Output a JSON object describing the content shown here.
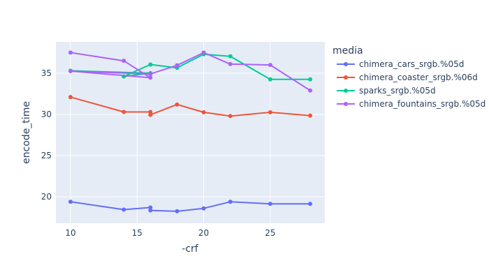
{
  "chart_data": {
    "type": "line",
    "xlabel": "-crf",
    "ylabel": "encode_time",
    "xlim": [
      8.9,
      29.1
    ],
    "ylim": [
      16.8,
      38.8
    ],
    "xticks": [
      10,
      15,
      20,
      25
    ],
    "yticks": [
      20,
      25,
      30,
      35
    ],
    "grid": true,
    "legend": {
      "title": "media",
      "position": "right"
    },
    "series": [
      {
        "name": "chimera_cars_srgb.%05d",
        "color": "#636efa",
        "points": [
          [
            10,
            19.4
          ],
          [
            14,
            18.45
          ],
          [
            16,
            18.7
          ],
          [
            16,
            18.35
          ],
          [
            18,
            18.25
          ],
          [
            20,
            18.6
          ],
          [
            22,
            19.4
          ],
          [
            25,
            19.15
          ],
          [
            28,
            19.15
          ]
        ]
      },
      {
        "name": "chimera_coaster_srgb.%06d",
        "color": "#ef553b",
        "points": [
          [
            10,
            32.1
          ],
          [
            14,
            30.3
          ],
          [
            16,
            30.3
          ],
          [
            16,
            29.95
          ],
          [
            18,
            31.2
          ],
          [
            20,
            30.25
          ],
          [
            22,
            29.8
          ],
          [
            25,
            30.25
          ],
          [
            28,
            29.85
          ]
        ]
      },
      {
        "name": "sparks_srgb.%05d",
        "color": "#00cc96",
        "points": [
          [
            10,
            35.3
          ],
          [
            16,
            35.0
          ],
          [
            14,
            34.6
          ],
          [
            16,
            36.05
          ],
          [
            18,
            35.65
          ],
          [
            20,
            37.3
          ],
          [
            22,
            37.05
          ],
          [
            25,
            34.25
          ],
          [
            28,
            34.25
          ]
        ]
      },
      {
        "name": "chimera_fountains_srgb.%05d",
        "color": "#ab63fa",
        "points": [
          [
            10,
            37.5
          ],
          [
            14,
            36.5
          ],
          [
            16,
            34.45
          ],
          [
            10,
            35.25
          ],
          [
            16,
            34.9
          ],
          [
            18,
            35.95
          ],
          [
            20,
            37.5
          ],
          [
            22,
            36.1
          ],
          [
            25,
            36.0
          ],
          [
            28,
            32.9
          ]
        ]
      }
    ]
  }
}
